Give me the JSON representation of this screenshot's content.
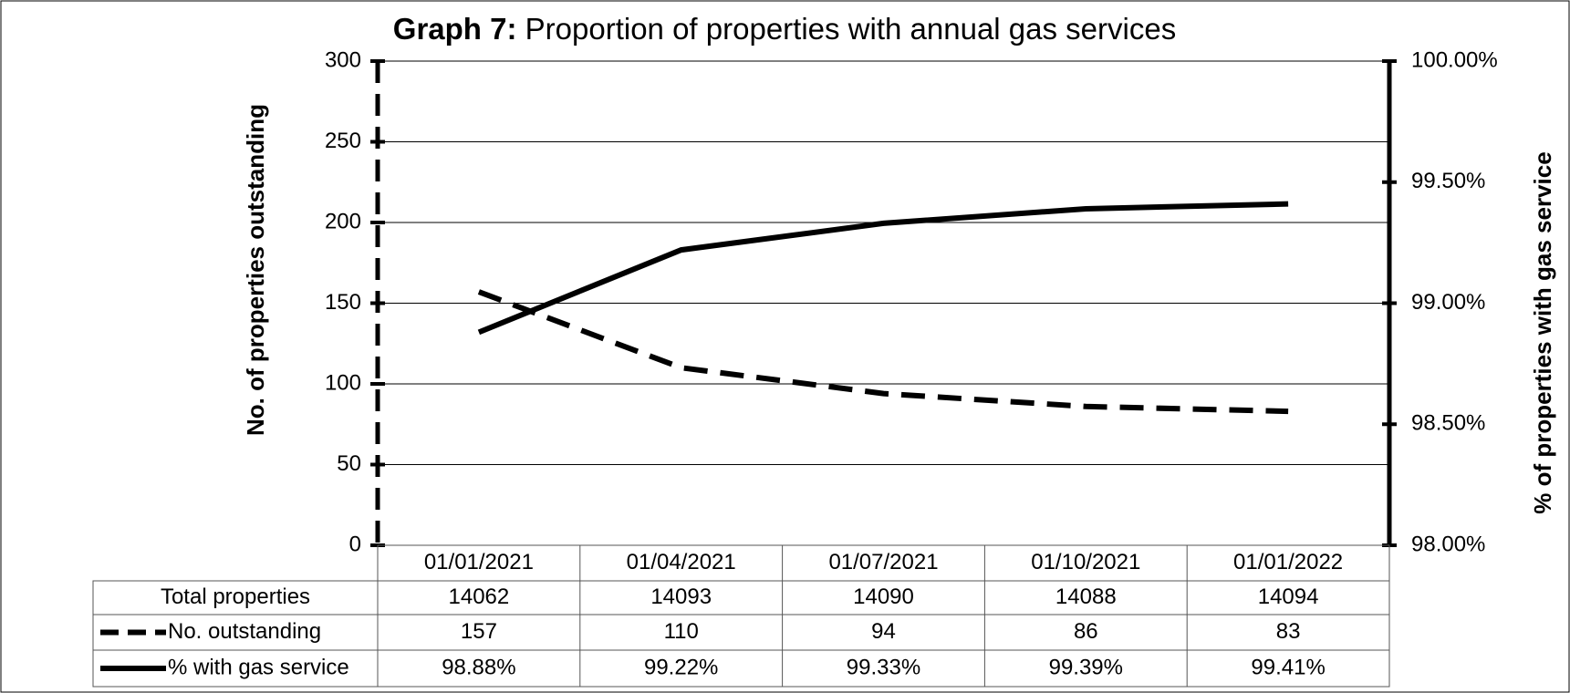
{
  "chart_data": {
    "type": "line",
    "title_prefix": "Graph 7:",
    "title": "Proportion of properties with annual gas services",
    "y_label": "No. of properties outstanding",
    "y2_label": "% of properties with gas service",
    "categories": [
      "01/01/2021",
      "01/04/2021",
      "01/07/2021",
      "01/10/2021",
      "01/01/2022"
    ],
    "table_row": {
      "name": "Total properties",
      "values": [
        14062,
        14093,
        14090,
        14088,
        14094
      ]
    },
    "series": [
      {
        "name": "No. outstanding",
        "color": "#000000",
        "dash": true,
        "values": [
          157,
          110,
          94,
          86,
          83
        ]
      },
      {
        "name": "% with gas service",
        "color": "#000000",
        "dash": false,
        "axis": "y2",
        "values": [
          98.88,
          99.22,
          99.33,
          99.39,
          99.41
        ],
        "value_labels": [
          "98.88%",
          "99.22%",
          "99.33%",
          "99.39%",
          "99.41%"
        ]
      }
    ],
    "ylim": [
      0,
      300
    ],
    "yticks": [
      0,
      50,
      100,
      150,
      200,
      250,
      300
    ],
    "y2lim": [
      98,
      100
    ],
    "y2ticks": [
      {
        "value": 98,
        "label": "98.00%"
      },
      {
        "value": 98.5,
        "label": "98.50%"
      },
      {
        "value": 99,
        "label": "99.00%"
      },
      {
        "value": 99.5,
        "label": "99.50%"
      },
      {
        "value": 100,
        "label": "100.00%"
      }
    ],
    "grid": true
  }
}
